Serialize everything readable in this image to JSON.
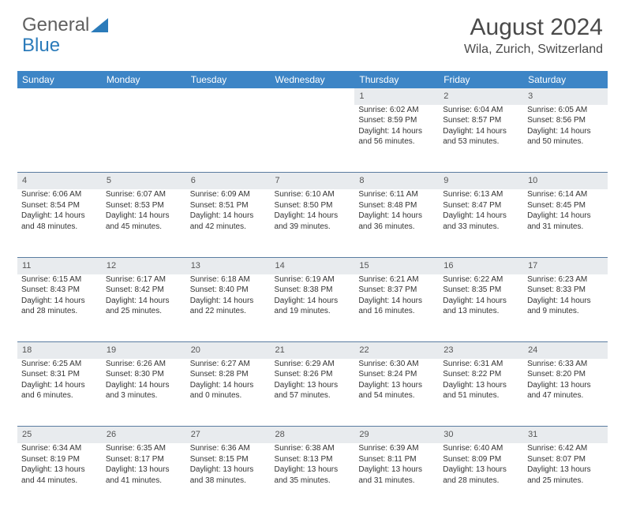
{
  "logo": {
    "part1": "General",
    "part2": "Blue"
  },
  "title": {
    "month": "August 2024",
    "location": "Wila, Zurich, Switzerland"
  },
  "colors": {
    "header_bg": "#3d85c6",
    "header_text": "#ffffff",
    "daynum_bg": "#e8ebee",
    "border": "#5a7ca0",
    "text": "#333333",
    "logo_gray": "#606060",
    "logo_blue": "#2b7bba"
  },
  "weekdays": [
    "Sunday",
    "Monday",
    "Tuesday",
    "Wednesday",
    "Thursday",
    "Friday",
    "Saturday"
  ],
  "weeks": [
    {
      "nums": [
        "",
        "",
        "",
        "",
        "1",
        "2",
        "3"
      ],
      "cells": [
        {},
        {},
        {},
        {},
        {
          "sunrise": "Sunrise: 6:02 AM",
          "sunset": "Sunset: 8:59 PM",
          "daylight": "Daylight: 14 hours and 56 minutes."
        },
        {
          "sunrise": "Sunrise: 6:04 AM",
          "sunset": "Sunset: 8:57 PM",
          "daylight": "Daylight: 14 hours and 53 minutes."
        },
        {
          "sunrise": "Sunrise: 6:05 AM",
          "sunset": "Sunset: 8:56 PM",
          "daylight": "Daylight: 14 hours and 50 minutes."
        }
      ]
    },
    {
      "nums": [
        "4",
        "5",
        "6",
        "7",
        "8",
        "9",
        "10"
      ],
      "cells": [
        {
          "sunrise": "Sunrise: 6:06 AM",
          "sunset": "Sunset: 8:54 PM",
          "daylight": "Daylight: 14 hours and 48 minutes."
        },
        {
          "sunrise": "Sunrise: 6:07 AM",
          "sunset": "Sunset: 8:53 PM",
          "daylight": "Daylight: 14 hours and 45 minutes."
        },
        {
          "sunrise": "Sunrise: 6:09 AM",
          "sunset": "Sunset: 8:51 PM",
          "daylight": "Daylight: 14 hours and 42 minutes."
        },
        {
          "sunrise": "Sunrise: 6:10 AM",
          "sunset": "Sunset: 8:50 PM",
          "daylight": "Daylight: 14 hours and 39 minutes."
        },
        {
          "sunrise": "Sunrise: 6:11 AM",
          "sunset": "Sunset: 8:48 PM",
          "daylight": "Daylight: 14 hours and 36 minutes."
        },
        {
          "sunrise": "Sunrise: 6:13 AM",
          "sunset": "Sunset: 8:47 PM",
          "daylight": "Daylight: 14 hours and 33 minutes."
        },
        {
          "sunrise": "Sunrise: 6:14 AM",
          "sunset": "Sunset: 8:45 PM",
          "daylight": "Daylight: 14 hours and 31 minutes."
        }
      ]
    },
    {
      "nums": [
        "11",
        "12",
        "13",
        "14",
        "15",
        "16",
        "17"
      ],
      "cells": [
        {
          "sunrise": "Sunrise: 6:15 AM",
          "sunset": "Sunset: 8:43 PM",
          "daylight": "Daylight: 14 hours and 28 minutes."
        },
        {
          "sunrise": "Sunrise: 6:17 AM",
          "sunset": "Sunset: 8:42 PM",
          "daylight": "Daylight: 14 hours and 25 minutes."
        },
        {
          "sunrise": "Sunrise: 6:18 AM",
          "sunset": "Sunset: 8:40 PM",
          "daylight": "Daylight: 14 hours and 22 minutes."
        },
        {
          "sunrise": "Sunrise: 6:19 AM",
          "sunset": "Sunset: 8:38 PM",
          "daylight": "Daylight: 14 hours and 19 minutes."
        },
        {
          "sunrise": "Sunrise: 6:21 AM",
          "sunset": "Sunset: 8:37 PM",
          "daylight": "Daylight: 14 hours and 16 minutes."
        },
        {
          "sunrise": "Sunrise: 6:22 AM",
          "sunset": "Sunset: 8:35 PM",
          "daylight": "Daylight: 14 hours and 13 minutes."
        },
        {
          "sunrise": "Sunrise: 6:23 AM",
          "sunset": "Sunset: 8:33 PM",
          "daylight": "Daylight: 14 hours and 9 minutes."
        }
      ]
    },
    {
      "nums": [
        "18",
        "19",
        "20",
        "21",
        "22",
        "23",
        "24"
      ],
      "cells": [
        {
          "sunrise": "Sunrise: 6:25 AM",
          "sunset": "Sunset: 8:31 PM",
          "daylight": "Daylight: 14 hours and 6 minutes."
        },
        {
          "sunrise": "Sunrise: 6:26 AM",
          "sunset": "Sunset: 8:30 PM",
          "daylight": "Daylight: 14 hours and 3 minutes."
        },
        {
          "sunrise": "Sunrise: 6:27 AM",
          "sunset": "Sunset: 8:28 PM",
          "daylight": "Daylight: 14 hours and 0 minutes."
        },
        {
          "sunrise": "Sunrise: 6:29 AM",
          "sunset": "Sunset: 8:26 PM",
          "daylight": "Daylight: 13 hours and 57 minutes."
        },
        {
          "sunrise": "Sunrise: 6:30 AM",
          "sunset": "Sunset: 8:24 PM",
          "daylight": "Daylight: 13 hours and 54 minutes."
        },
        {
          "sunrise": "Sunrise: 6:31 AM",
          "sunset": "Sunset: 8:22 PM",
          "daylight": "Daylight: 13 hours and 51 minutes."
        },
        {
          "sunrise": "Sunrise: 6:33 AM",
          "sunset": "Sunset: 8:20 PM",
          "daylight": "Daylight: 13 hours and 47 minutes."
        }
      ]
    },
    {
      "nums": [
        "25",
        "26",
        "27",
        "28",
        "29",
        "30",
        "31"
      ],
      "cells": [
        {
          "sunrise": "Sunrise: 6:34 AM",
          "sunset": "Sunset: 8:19 PM",
          "daylight": "Daylight: 13 hours and 44 minutes."
        },
        {
          "sunrise": "Sunrise: 6:35 AM",
          "sunset": "Sunset: 8:17 PM",
          "daylight": "Daylight: 13 hours and 41 minutes."
        },
        {
          "sunrise": "Sunrise: 6:36 AM",
          "sunset": "Sunset: 8:15 PM",
          "daylight": "Daylight: 13 hours and 38 minutes."
        },
        {
          "sunrise": "Sunrise: 6:38 AM",
          "sunset": "Sunset: 8:13 PM",
          "daylight": "Daylight: 13 hours and 35 minutes."
        },
        {
          "sunrise": "Sunrise: 6:39 AM",
          "sunset": "Sunset: 8:11 PM",
          "daylight": "Daylight: 13 hours and 31 minutes."
        },
        {
          "sunrise": "Sunrise: 6:40 AM",
          "sunset": "Sunset: 8:09 PM",
          "daylight": "Daylight: 13 hours and 28 minutes."
        },
        {
          "sunrise": "Sunrise: 6:42 AM",
          "sunset": "Sunset: 8:07 PM",
          "daylight": "Daylight: 13 hours and 25 minutes."
        }
      ]
    }
  ]
}
